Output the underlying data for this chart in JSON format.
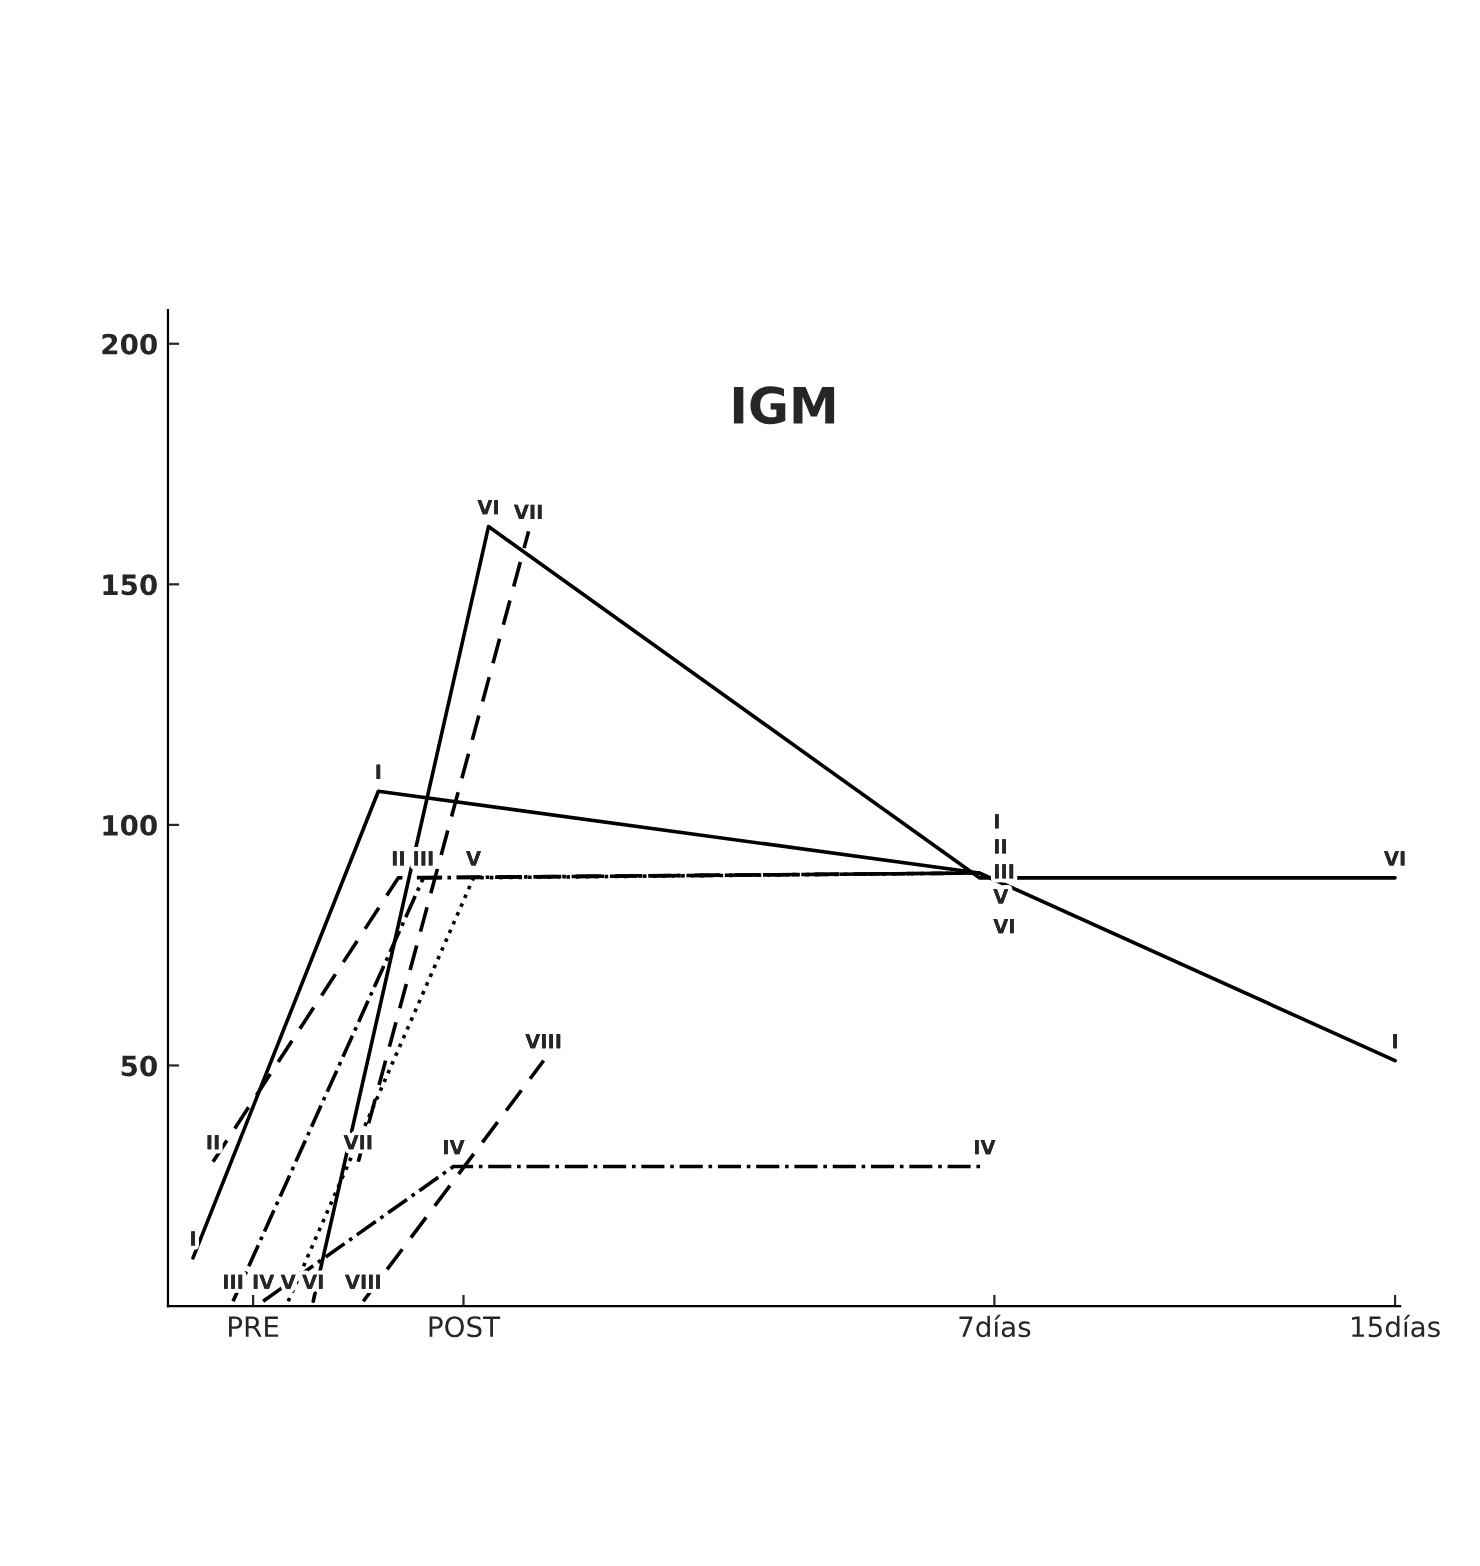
{
  "chart_data": {
    "type": "line",
    "title": "IGM",
    "xlim": [
      -9.5,
      15.1
    ],
    "ylim": [
      0,
      207
    ],
    "xticks": [
      {
        "value": -7.8,
        "label": "PRE"
      },
      {
        "value": -3.6,
        "label": "POST"
      },
      {
        "value": 7,
        "label": "7días"
      },
      {
        "value": 15,
        "label": "15días"
      }
    ],
    "yticks": [
      50,
      100,
      150,
      200
    ],
    "grid": false,
    "legend": false,
    "marker": "none",
    "series": [
      {
        "name": "I",
        "color": "#000000",
        "line_style": "solid",
        "x": [
          -9.0,
          -5.3,
          6.7,
          15.0
        ],
        "values": [
          10,
          107,
          90,
          51
        ]
      },
      {
        "name": "II",
        "color": "#000000",
        "line_style": "dashed",
        "x": [
          -8.6,
          -4.9,
          6.7
        ],
        "values": [
          30,
          89,
          90
        ]
      },
      {
        "name": "III",
        "color": "#000000",
        "line_style": "dashdot",
        "x": [
          -8.2,
          -4.4,
          6.7
        ],
        "values": [
          1,
          89,
          90
        ]
      },
      {
        "name": "IV",
        "color": "#000000",
        "line_style": "dashdot",
        "x": [
          -7.6,
          -3.8,
          6.8
        ],
        "values": [
          1,
          29,
          29
        ]
      },
      {
        "name": "V",
        "color": "#000000",
        "line_style": "dotted",
        "x": [
          -7.1,
          -3.4,
          6.7
        ],
        "values": [
          1,
          89,
          90
        ]
      },
      {
        "name": "VI",
        "color": "#000000",
        "line_style": "solid",
        "x": [
          -6.6,
          -3.1,
          6.7,
          15.0
        ],
        "values": [
          1,
          162,
          89,
          89
        ]
      },
      {
        "name": "VII",
        "color": "#000000",
        "line_style": "dashed",
        "x": [
          -5.7,
          -2.3
        ],
        "values": [
          30,
          161
        ]
      },
      {
        "name": "VIII",
        "color": "#000000",
        "line_style": "dashed",
        "x": [
          -5.6,
          -2.0
        ],
        "values": [
          1,
          51
        ]
      }
    ]
  }
}
